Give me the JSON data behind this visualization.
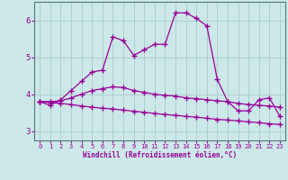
{
  "xlabel": "Windchill (Refroidissement éolien,°C)",
  "x_values": [
    0,
    1,
    2,
    3,
    4,
    5,
    6,
    7,
    8,
    9,
    10,
    11,
    12,
    13,
    14,
    15,
    16,
    17,
    18,
    19,
    20,
    21,
    22,
    23
  ],
  "line1": [
    3.8,
    3.7,
    3.85,
    4.1,
    4.35,
    4.6,
    4.65,
    5.55,
    5.45,
    5.05,
    5.2,
    5.35,
    5.35,
    6.2,
    6.2,
    6.05,
    5.85,
    4.4,
    3.8,
    3.55,
    3.55,
    3.85,
    3.9,
    3.4
  ],
  "line2": [
    3.8,
    3.8,
    3.82,
    3.9,
    4.0,
    4.1,
    4.15,
    4.2,
    4.18,
    4.1,
    4.05,
    4.0,
    3.97,
    3.95,
    3.9,
    3.88,
    3.85,
    3.82,
    3.8,
    3.75,
    3.72,
    3.7,
    3.68,
    3.65
  ],
  "line3": [
    3.8,
    3.78,
    3.75,
    3.72,
    3.68,
    3.65,
    3.62,
    3.6,
    3.57,
    3.54,
    3.51,
    3.48,
    3.45,
    3.43,
    3.4,
    3.38,
    3.35,
    3.32,
    3.3,
    3.28,
    3.25,
    3.23,
    3.2,
    3.18
  ],
  "line_color": "#990099",
  "bg_color": "#cce8e8",
  "grid_color": "#aacccc",
  "ylim": [
    2.75,
    6.5
  ],
  "yticks": [
    3,
    4,
    5,
    6
  ],
  "xticks": [
    0,
    1,
    2,
    3,
    4,
    5,
    6,
    7,
    8,
    9,
    10,
    11,
    12,
    13,
    14,
    15,
    16,
    17,
    18,
    19,
    20,
    21,
    22,
    23
  ]
}
